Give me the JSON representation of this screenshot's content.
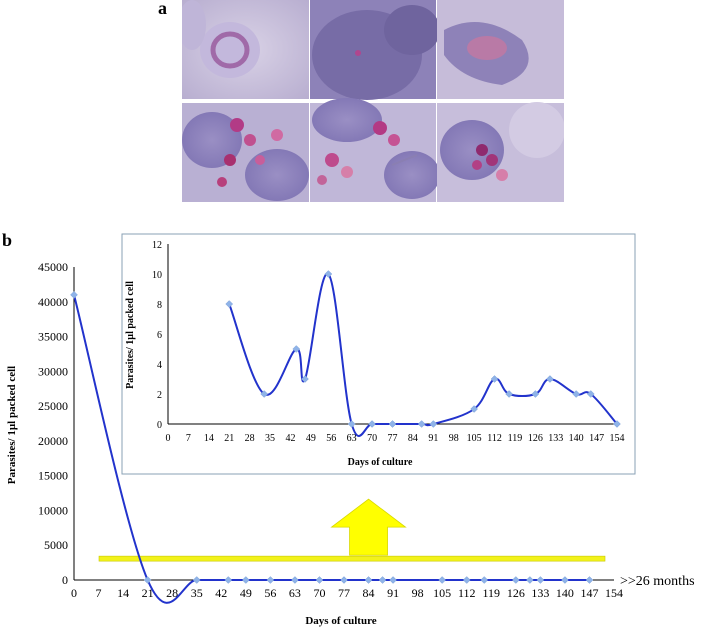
{
  "panels": {
    "a": "a",
    "b": "b"
  },
  "micrograph": {
    "rows": [
      [
        "ring-cell",
        "smudge-cell",
        "trophozoite-cell"
      ],
      [
        "cluster-cell",
        "cluster-cell",
        "cluster-cell"
      ]
    ]
  },
  "chart_data": [
    {
      "type": "line",
      "title": "",
      "xlabel": "Days of culture",
      "ylabel": "Parasites/ 1µl packed cell",
      "x_ticks": [
        0,
        7,
        14,
        21,
        28,
        35,
        42,
        49,
        56,
        63,
        70,
        77,
        84,
        91,
        98,
        105,
        112,
        119,
        126,
        133,
        140,
        147,
        154
      ],
      "y_ticks": [
        0,
        5000,
        10000,
        15000,
        20000,
        25000,
        30000,
        35000,
        40000,
        45000
      ],
      "xlim": [
        0,
        154
      ],
      "ylim": [
        0,
        45000
      ],
      "grid": false,
      "series": [
        {
          "points": [
            [
              0,
              41000
            ],
            [
              21,
              0
            ],
            [
              35,
              0
            ],
            [
              44,
              0
            ],
            [
              49,
              0
            ],
            [
              56,
              0
            ],
            [
              63,
              0
            ],
            [
              70,
              0
            ],
            [
              77,
              0
            ],
            [
              84,
              0
            ],
            [
              88,
              0
            ],
            [
              91,
              0
            ],
            [
              105,
              0
            ],
            [
              112,
              0
            ],
            [
              117,
              0
            ],
            [
              126,
              0
            ],
            [
              130,
              0
            ],
            [
              133,
              0
            ],
            [
              140,
              0
            ],
            [
              147,
              0
            ]
          ],
          "color": "#2233cc"
        }
      ],
      "annotation": ">>26 months",
      "band_value": 3000,
      "band_color": "#f2f21a",
      "arrow_color": "#ffff00"
    },
    {
      "type": "line",
      "title": "",
      "xlabel": "Days of culture",
      "ylabel": "Parasites/ 1µl packed cell",
      "x_ticks": [
        0,
        7,
        14,
        21,
        28,
        35,
        42,
        49,
        56,
        63,
        70,
        77,
        84,
        91,
        98,
        105,
        112,
        119,
        126,
        133,
        140,
        147,
        154
      ],
      "y_ticks": [
        0,
        2,
        4,
        6,
        8,
        10,
        12
      ],
      "xlim": [
        0,
        154
      ],
      "ylim": [
        0,
        12
      ],
      "grid": false,
      "series": [
        {
          "points": [
            [
              21,
              8
            ],
            [
              33,
              2
            ],
            [
              44,
              5
            ],
            [
              47,
              3
            ],
            [
              55,
              10
            ],
            [
              63,
              0
            ],
            [
              70,
              0
            ],
            [
              77,
              0
            ],
            [
              87,
              0
            ],
            [
              91,
              0
            ],
            [
              105,
              1
            ],
            [
              112,
              3
            ],
            [
              117,
              2
            ],
            [
              126,
              2
            ],
            [
              131,
              3
            ],
            [
              140,
              2
            ],
            [
              145,
              2
            ],
            [
              154,
              0
            ]
          ],
          "color": "#2233cc"
        }
      ]
    }
  ]
}
